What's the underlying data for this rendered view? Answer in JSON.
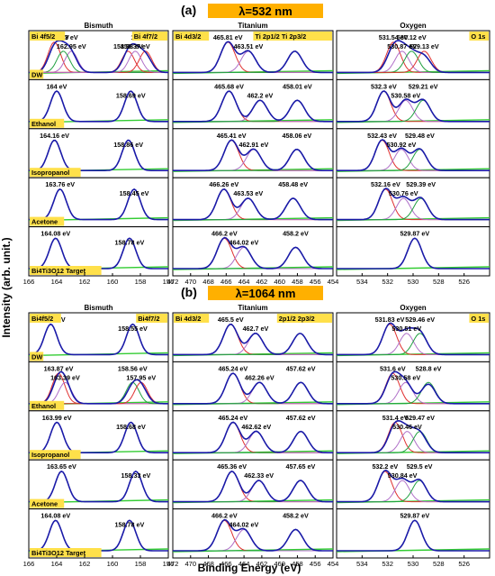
{
  "figure": {
    "ylabel": "Intensity (arb. unit.)",
    "xlabel": "Binding Energy (eV)",
    "columns": [
      "Bismuth",
      "Titanium",
      "Oxygen"
    ],
    "rows": [
      "DW",
      "Ethanol",
      "Isopropanol",
      "Acetone",
      "Bi4Ti3O12 Target"
    ],
    "colors": {
      "envelope": "#1a1aa8",
      "data": "#000000",
      "peakA": "#e03030",
      "peakB": "#b070c8",
      "peakC": "#20a040",
      "background": "#33cc33",
      "highlight": "#ffe04a",
      "banner": "#ffb000"
    }
  },
  "chart_data": [
    {
      "panel": "a",
      "title": "λ=532 nm",
      "type": "line",
      "columns": [
        {
          "name": "Bismuth",
          "xlim": [
            166,
            156
          ],
          "ticks": [
            166,
            164,
            162,
            160,
            158,
            156
          ],
          "corner_left": "Bi 4f5/2",
          "corner_right": "Bi 4f7/2",
          "rows": [
            {
              "sample": "DW",
              "peaks": [
                164.17,
                162.95,
                163.53,
                158.88,
                157.63,
                158.37
              ],
              "labels": [
                "164.17 eV",
                "162.95 eV",
                "163.53 eV",
                "158.88 eV",
                "157.63 eV",
                "158.37 eV"
              ]
            },
            {
              "sample": "Ethanol",
              "peaks": [
                164,
                158.69
              ],
              "labels": [
                "164 eV",
                "158.69 eV"
              ]
            },
            {
              "sample": "Isopropanol",
              "peaks": [
                164.16,
                158.86
              ],
              "labels": [
                "164.16 eV",
                "158.86 eV"
              ]
            },
            {
              "sample": "Acetone",
              "peaks": [
                163.76,
                158.45
              ],
              "labels": [
                "163.76 eV",
                "158.45 eV"
              ]
            },
            {
              "sample": "Bi4Ti3O12 Target",
              "peaks": [
                164.08,
                158.78
              ],
              "labels": [
                "164.08 eV",
                "158.78 eV"
              ]
            }
          ]
        },
        {
          "name": "Titanium",
          "xlim": [
            472,
            454
          ],
          "ticks": [
            472,
            470,
            468,
            466,
            464,
            462,
            460,
            458,
            456,
            454
          ],
          "corner_left": "Bi 4d3/2",
          "corner_right": "Ti 2p1/2   Ti 2p3/2",
          "rows": [
            {
              "sample": "DW",
              "peaks": [
                465.81,
                463.51,
                458.29
              ],
              "labels": [
                "465.81 eV",
                "463.51 eV",
                "458.29 eV"
              ]
            },
            {
              "sample": "Ethanol",
              "peaks": [
                465.68,
                462.2,
                458.01
              ],
              "labels": [
                "465.68 eV",
                "462.2 eV",
                "458.01 eV"
              ]
            },
            {
              "sample": "Isopropanol",
              "peaks": [
                465.41,
                462.91,
                458.06
              ],
              "labels": [
                "465.41 eV",
                "462.91 eV",
                "458.06 eV"
              ]
            },
            {
              "sample": "Acetone",
              "peaks": [
                466.26,
                463.53,
                458.48
              ],
              "labels": [
                "466.26 eV",
                "463.53 eV",
                "458.48 eV"
              ]
            },
            {
              "sample": "Bi4Ti3O12 Target",
              "peaks": [
                466.2,
                464.02,
                458.2
              ],
              "labels": [
                "466.2 eV",
                "464.02 eV",
                "458.2 eV"
              ]
            }
          ]
        },
        {
          "name": "Oxygen",
          "xlim": [
            536,
            524
          ],
          "ticks": [
            534,
            532,
            530,
            528,
            526
          ],
          "corner_left": "",
          "corner_right": "O 1s",
          "rows": [
            {
              "sample": "DW",
              "peaks": [
                531.54,
                530.87,
                530.12,
                529.13
              ],
              "labels": [
                "531.54 eV",
                "530.87 eV",
                "530.12 eV",
                "529.13 eV"
              ]
            },
            {
              "sample": "Ethanol",
              "peaks": [
                532.3,
                530.58,
                529.21
              ],
              "labels": [
                "532.3 eV",
                "530.58 eV",
                "529.21 eV"
              ]
            },
            {
              "sample": "Isopropanol",
              "peaks": [
                532.43,
                530.92,
                529.48
              ],
              "labels": [
                "532.43 eV",
                "530.92 eV",
                "529.48 eV"
              ]
            },
            {
              "sample": "Acetone",
              "peaks": [
                532.16,
                530.76,
                529.39
              ],
              "labels": [
                "532.16 eV",
                "530.76 eV",
                "529.39 eV"
              ]
            },
            {
              "sample": "Bi4Ti3O12 Target",
              "peaks": [
                529.87
              ],
              "labels": [
                "529.87 eV"
              ]
            }
          ]
        }
      ]
    },
    {
      "panel": "b",
      "title": "λ=1064 nm",
      "type": "line",
      "columns": [
        {
          "name": "Bismuth",
          "xlim": [
            166,
            156
          ],
          "ticks": [
            166,
            164,
            162,
            160,
            158,
            156
          ],
          "corner_left": "Bi4f5/2",
          "corner_right": "Bi4f7/2",
          "rows": [
            {
              "sample": "DW",
              "peaks": [
                164.43,
                158.55
              ],
              "labels": [
                "164.43 eV",
                "158.55 eV"
              ]
            },
            {
              "sample": "Ethanol",
              "peaks": [
                163.87,
                163.39,
                158.56,
                157.95
              ],
              "labels": [
                "163.87 eV",
                "163.39 eV",
                "158.56 eV",
                "157.95 eV"
              ]
            },
            {
              "sample": "Isopropanol",
              "peaks": [
                163.99,
                158.68
              ],
              "labels": [
                "163.99 eV",
                "158.68 eV"
              ]
            },
            {
              "sample": "Acetone",
              "peaks": [
                163.65,
                158.33
              ],
              "labels": [
                "163.65 eV",
                "158.33 eV"
              ]
            },
            {
              "sample": "Bi4Ti3O12 Target",
              "peaks": [
                164.08,
                158.78
              ],
              "labels": [
                "164.08 eV",
                "158.78 eV"
              ]
            }
          ]
        },
        {
          "name": "Titanium",
          "xlim": [
            472,
            454
          ],
          "ticks": [
            472,
            470,
            468,
            466,
            464,
            462,
            460,
            458,
            456,
            454
          ],
          "corner_left": "Bi 4d3/2",
          "corner_right": "2p1/2   2p3/2",
          "rows": [
            {
              "sample": "DW",
              "peaks": [
                465.5,
                462.7,
                457.7
              ],
              "labels": [
                "465.5 eV",
                "462.7 eV",
                "457.7 eV"
              ]
            },
            {
              "sample": "Ethanol",
              "peaks": [
                465.24,
                462.26,
                457.62
              ],
              "labels": [
                "465.24 eV",
                "462.26 eV",
                "457.62 eV"
              ]
            },
            {
              "sample": "Isopropanol",
              "peaks": [
                465.24,
                462.62,
                457.62
              ],
              "labels": [
                "465.24 eV",
                "462.62 eV",
                "457.62 eV"
              ]
            },
            {
              "sample": "Acetone",
              "peaks": [
                465.36,
                462.33,
                457.65
              ],
              "labels": [
                "465.36 eV",
                "462.33 eV",
                "457.65 eV"
              ]
            },
            {
              "sample": "Bi4Ti3O12 Target",
              "peaks": [
                466.2,
                464.02,
                458.2
              ],
              "labels": [
                "466.2 eV",
                "464.02 eV",
                "458.2 eV"
              ]
            }
          ]
        },
        {
          "name": "Oxygen",
          "xlim": [
            536,
            524
          ],
          "ticks": [
            534,
            532,
            530,
            528,
            526
          ],
          "corner_left": "",
          "corner_right": "O 1s",
          "rows": [
            {
              "sample": "DW",
              "peaks": [
                531.83,
                530.51,
                529.46
              ],
              "labels": [
                "531.83 eV",
                "530.51 eV",
                "529.46 eV"
              ]
            },
            {
              "sample": "Ethanol",
              "peaks": [
                531.6,
                530.58,
                528.8
              ],
              "labels": [
                "531.6 eV",
                "530.58 eV",
                "528.8 eV"
              ]
            },
            {
              "sample": "Isopropanol",
              "peaks": [
                531.4,
                530.46,
                529.47
              ],
              "labels": [
                "531.4 eV",
                "530.46 eV",
                "529.47 eV"
              ]
            },
            {
              "sample": "Acetone",
              "peaks": [
                532.2,
                530.84,
                529.5
              ],
              "labels": [
                "532.2 eV",
                "530.84 eV",
                "529.5 eV"
              ]
            },
            {
              "sample": "Bi4Ti3O12 Target",
              "peaks": [
                529.87
              ],
              "labels": [
                "529.87 eV"
              ]
            }
          ]
        }
      ]
    }
  ]
}
